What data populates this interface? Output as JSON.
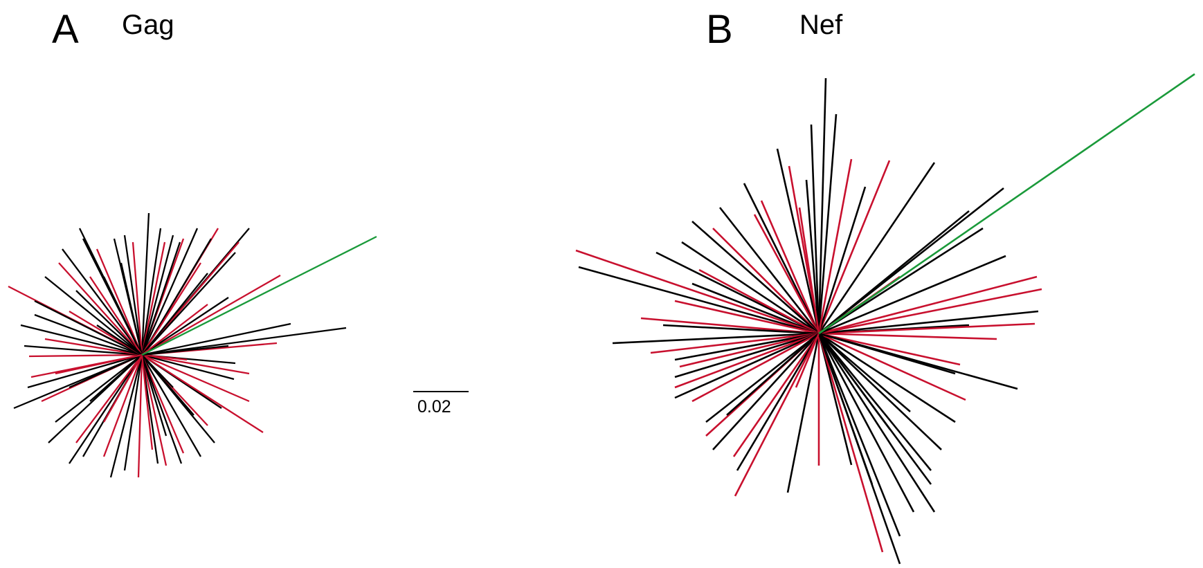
{
  "colors": {
    "black_branch": "#000000",
    "red_branch": "#c8102e",
    "green_branch": "#1a9a3a",
    "background": "#ffffff"
  },
  "panels": [
    {
      "letter": "A",
      "gene": "Gag"
    },
    {
      "letter": "B",
      "gene": "Nef"
    }
  ],
  "scale_bar": {
    "label": "0.02"
  },
  "legend_note": ""
}
